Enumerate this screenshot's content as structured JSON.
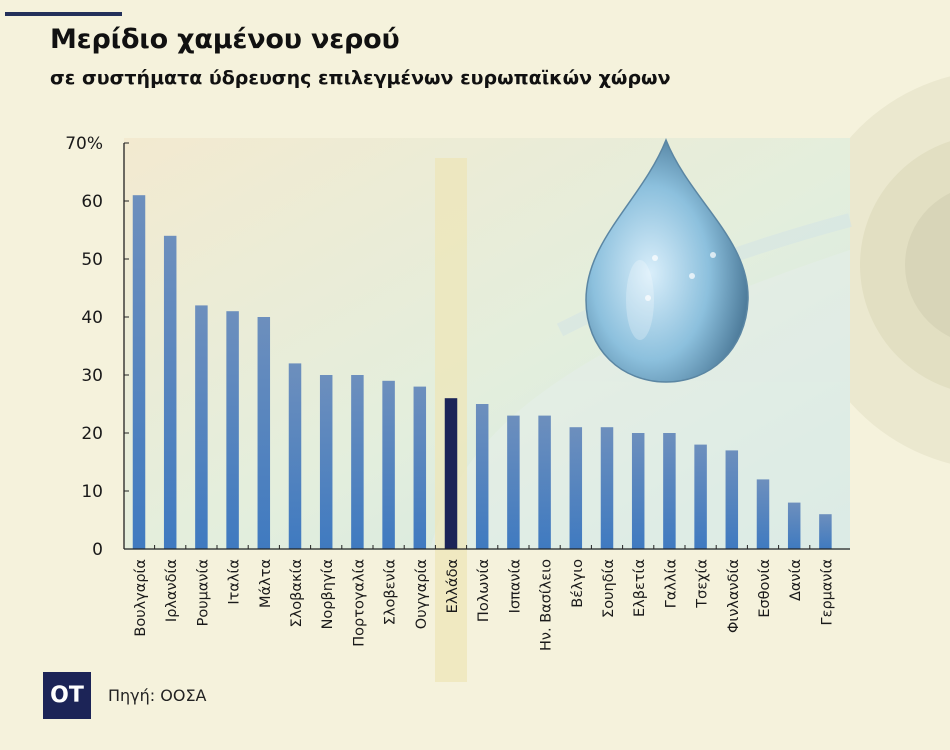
{
  "header": {
    "title": "Μερίδιο χαμένου νερού",
    "subtitle": "σε συστήματα ύδρευσης επιλεγμένων ευρωπαϊκών χώρων"
  },
  "footer": {
    "logo_text": "ΟΤ",
    "source": "Πηγή: ΟΟΣΑ"
  },
  "colors": {
    "bar": "#4f7fbf",
    "highlight_bar": "#1c2457",
    "background": "#f5f2dc",
    "highlight_band": "#ede6b8"
  },
  "chart_data": {
    "type": "bar",
    "title": "Μερίδιο χαμένου νερού",
    "subtitle": "σε συστήματα ύδρευσης επιλεγμένων ευρωπαϊκών χώρων",
    "xlabel": "",
    "ylabel": "",
    "ylim": [
      0,
      70
    ],
    "yticks": [
      "0",
      "10",
      "20",
      "30",
      "40",
      "50",
      "60",
      "70%"
    ],
    "grid": false,
    "highlight": "Ελλάδα",
    "categories": [
      "Βουλγαρία",
      "Ιρλανδία",
      "Ρουμανία",
      "Ιταλία",
      "Μάλτα",
      "Σλοβακία",
      "Νορβηγία",
      "Πορτογαλία",
      "Σλοβενία",
      "Ουγγαρία",
      "Ελλάδα",
      "Πολωνία",
      "Ισπανία",
      "Ην. Βασίλειο",
      "Βέλγιο",
      "Σουηδία",
      "Ελβετία",
      "Γαλλία",
      "Τσεχία",
      "Φινλανδία",
      "Εσθονία",
      "Δανία",
      "Γερμανία"
    ],
    "values": [
      61,
      54,
      42,
      41,
      40,
      32,
      30,
      30,
      29,
      28,
      26,
      25,
      23,
      23,
      21,
      21,
      20,
      20,
      18,
      17,
      12,
      8,
      6
    ]
  }
}
